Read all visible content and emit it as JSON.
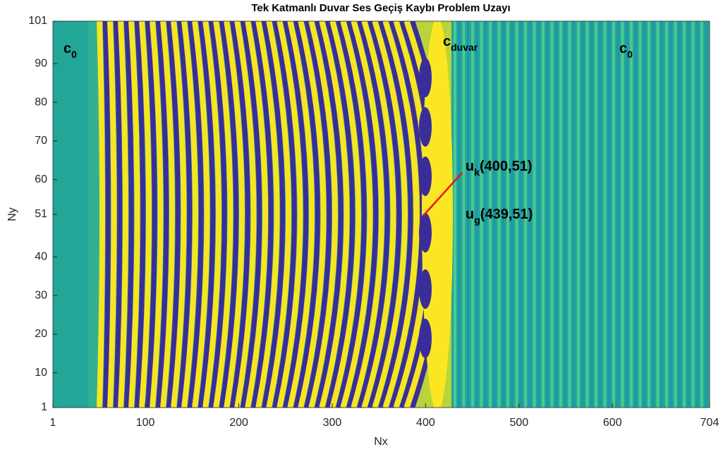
{
  "chart_data": {
    "type": "heatmap",
    "title": "Tek Katmanlı Duvar Ses Geçiş Kaybı Problem Uzayı",
    "xlabel": "Nx",
    "ylabel": "Ny",
    "xlim": [
      1,
      704
    ],
    "xticks": [
      1,
      100,
      200,
      300,
      400,
      500,
      600,
      704
    ],
    "ylim": [
      1,
      101
    ],
    "yticks": [
      1,
      10,
      20,
      30,
      40,
      51,
      60,
      70,
      80,
      90,
      101
    ],
    "annotations": [
      {
        "text": "c",
        "sub": "0"
      },
      {
        "text": "c",
        "sub": "duvar"
      },
      {
        "text": "c",
        "sub": "0"
      },
      {
        "text": "u",
        "sub": "k",
        "suffix": "(400,51)"
      },
      {
        "text": "u",
        "sub": "g",
        "suffix": "(439,51)"
      }
    ]
  }
}
